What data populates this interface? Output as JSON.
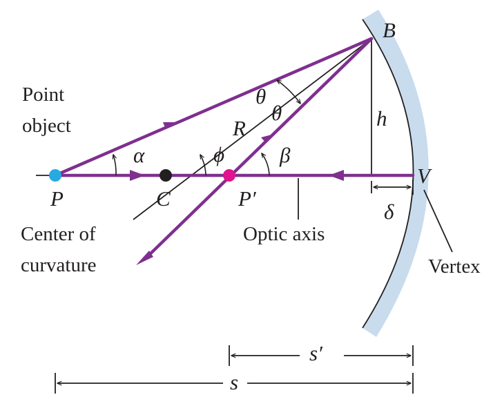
{
  "labels": {
    "point_object_1": "Point",
    "point_object_2": "object",
    "P": "P",
    "C": "C",
    "P_prime": "P′",
    "B": "B",
    "V": "V",
    "R": "R",
    "h": "h",
    "delta": "δ",
    "alpha": "α",
    "phi": "ϕ",
    "beta": "β",
    "theta": "θ",
    "center_1": "Center of",
    "center_2": "curvature",
    "optic_axis": "Optic axis",
    "vertex": "Vertex",
    "s_prime": "s′",
    "s": "s"
  },
  "colors": {
    "ray": "#7f2f8f",
    "mirror": "#c9dcee",
    "ink": "#231f20",
    "object_point": "#27a9e1",
    "center_point": "#231f20",
    "image_point": "#e0138c"
  }
}
